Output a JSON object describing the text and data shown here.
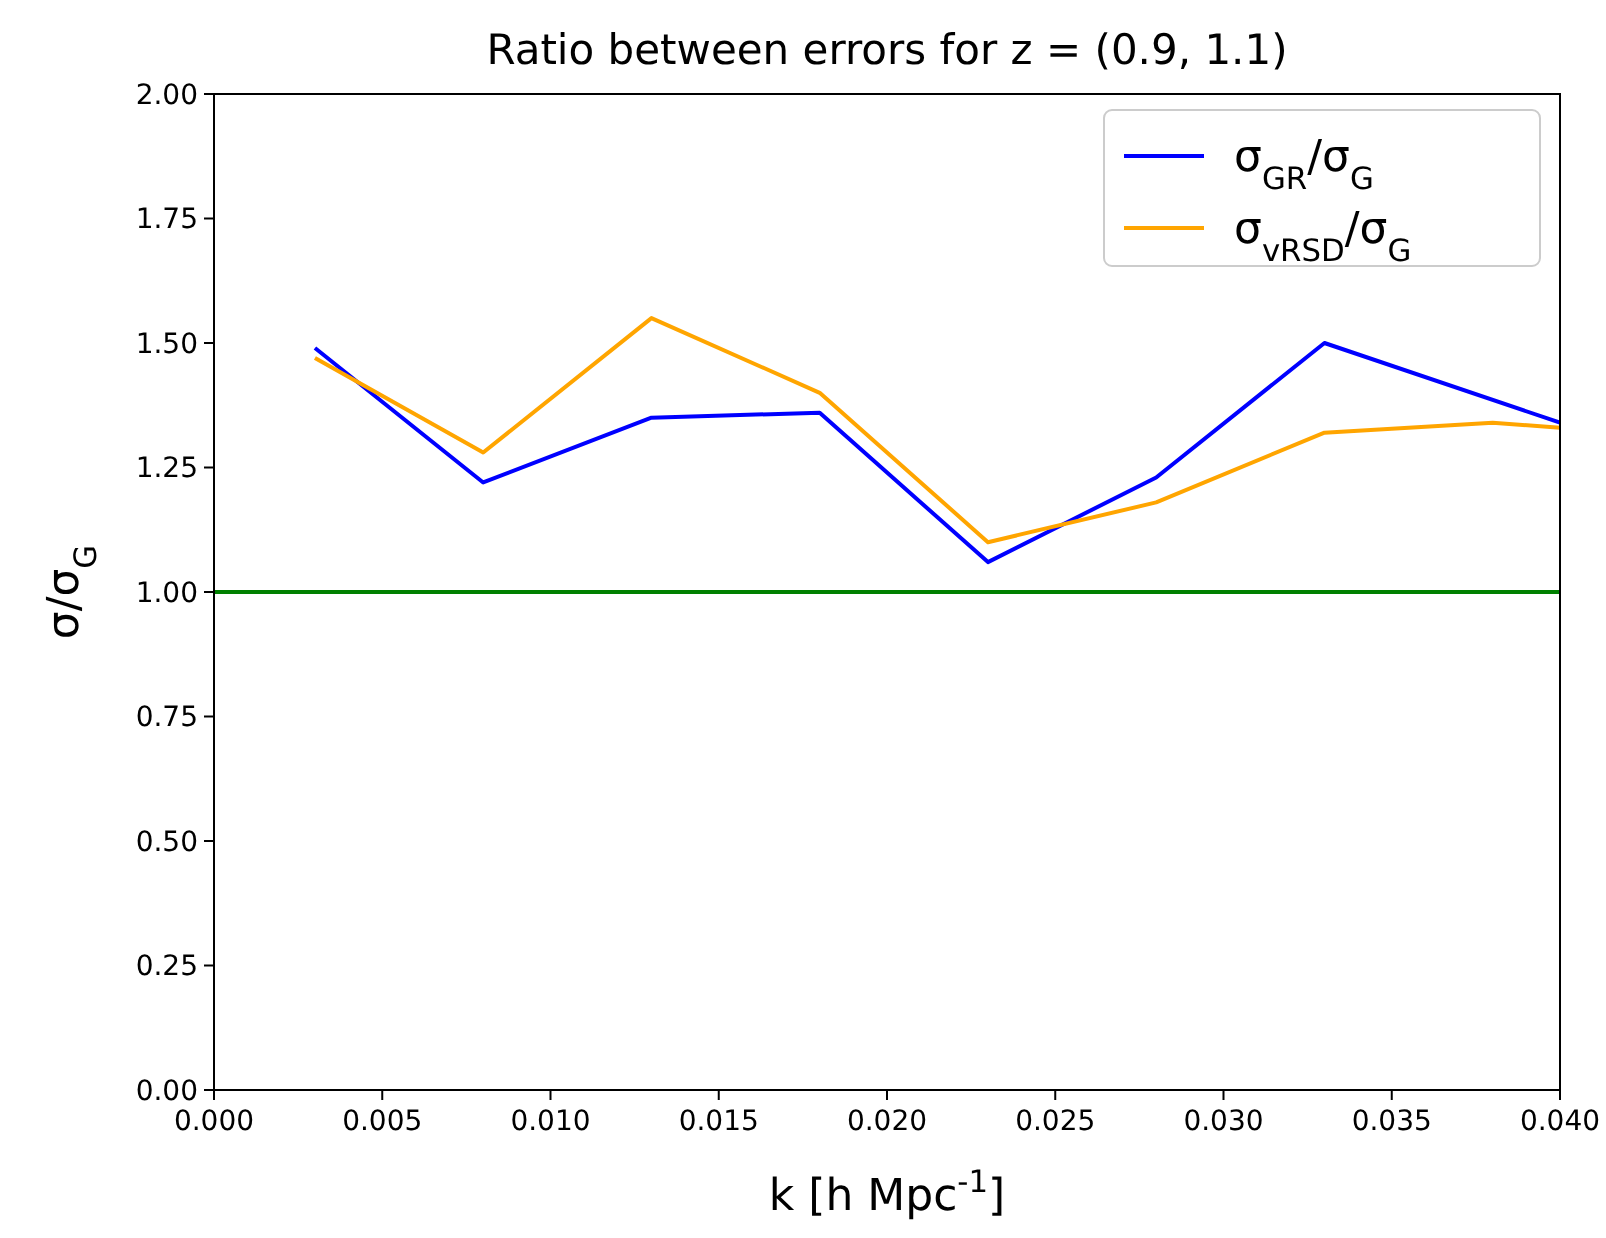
{
  "chart_data": {
    "type": "line",
    "title": "Ratio between errors for z = (0.9, 1.1)",
    "xlabel": "k [h Mpc$^{-1}$]",
    "ylabel": "σ/σ$_{G}$",
    "x": [
      0.003,
      0.008,
      0.013,
      0.018,
      0.023,
      0.028,
      0.033,
      0.038,
      0.04
    ],
    "series": [
      {
        "name": "σ$_{GR}$/σ$_{G}$",
        "color": "#0000ff",
        "x": [
          0.003,
          0.008,
          0.013,
          0.018,
          0.023,
          0.028,
          0.033,
          0.04
        ],
        "values": [
          1.49,
          1.22,
          1.35,
          1.36,
          1.06,
          1.23,
          1.5,
          1.34
        ]
      },
      {
        "name": "σ$_{vRSD}$/σ$_{G}$",
        "color": "#ffa500",
        "values": [
          1.47,
          1.28,
          1.55,
          1.4,
          1.1,
          1.18,
          1.32,
          1.34,
          1.33
        ]
      }
    ],
    "xlim": [
      0,
      0.04
    ],
    "xticks": [
      {
        "value": 0,
        "label": "0.000"
      },
      {
        "value": 0.005,
        "label": "0.005"
      },
      {
        "value": 0.01,
        "label": "0.010"
      },
      {
        "value": 0.015,
        "label": "0.015"
      },
      {
        "value": 0.02,
        "label": "0.020"
      },
      {
        "value": 0.025,
        "label": "0.025"
      },
      {
        "value": 0.03,
        "label": "0.030"
      },
      {
        "value": 0.035,
        "label": "0.035"
      },
      {
        "value": 0.04,
        "label": "0.040"
      }
    ],
    "ylim": [
      0,
      2
    ],
    "yticks": [
      {
        "value": 0,
        "label": "0.00"
      },
      {
        "value": 0.25,
        "label": "0.25"
      },
      {
        "value": 0.5,
        "label": "0.50"
      },
      {
        "value": 0.75,
        "label": "0.75"
      },
      {
        "value": 1,
        "label": "1.00"
      },
      {
        "value": 1.25,
        "label": "1.25"
      },
      {
        "value": 1.5,
        "label": "1.50"
      },
      {
        "value": 1.75,
        "label": "1.75"
      },
      {
        "value": 2,
        "label": "2.00"
      }
    ],
    "ref_lines": [
      {
        "axis": "y",
        "value": 1,
        "color": "#008000"
      }
    ],
    "legend": "top right",
    "grid": false,
    "marker": "none",
    "line_style": "solid"
  }
}
